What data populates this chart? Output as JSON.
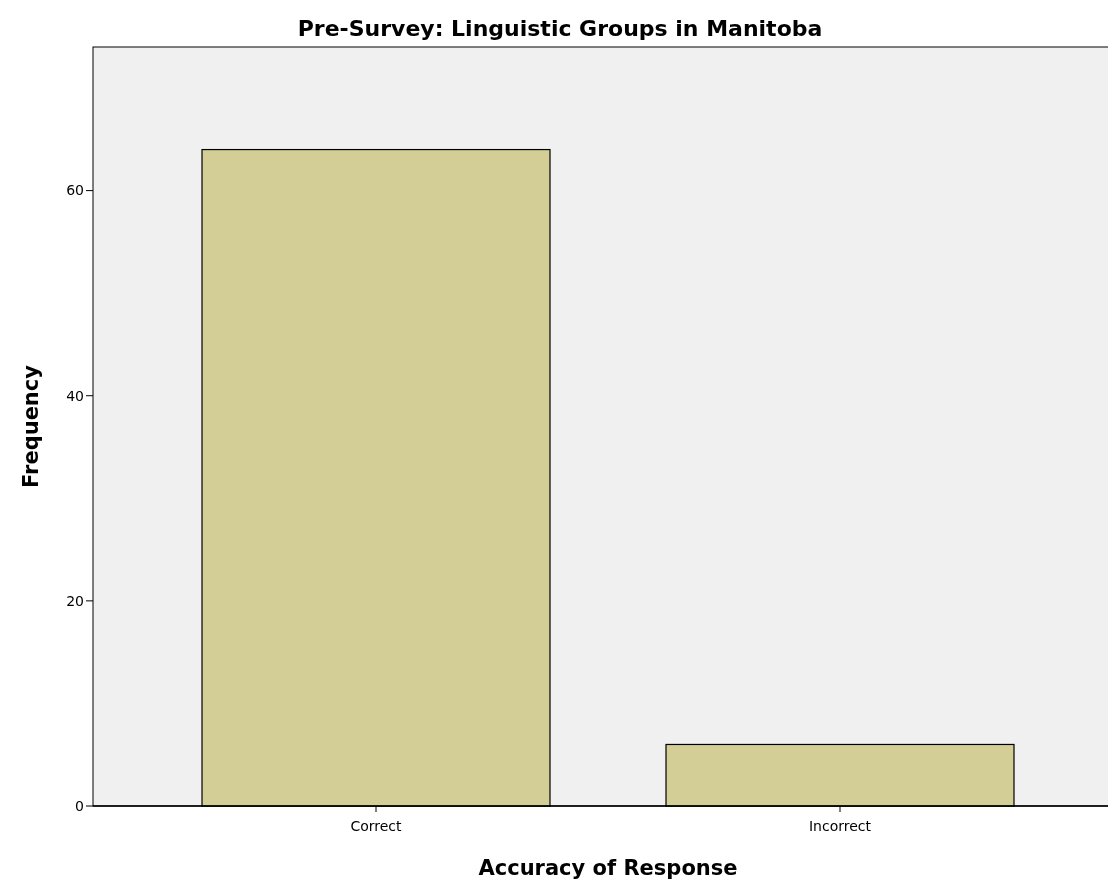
{
  "chart_data": {
    "type": "bar",
    "title": "Pre-Survey: Linguistic Groups in Manitoba",
    "xlabel": "Accuracy of Response",
    "ylabel": "Frequency",
    "categories": [
      "Correct",
      "Incorrect"
    ],
    "values": [
      64,
      6
    ],
    "color": "#d3cd96",
    "ylim": [
      0,
      74
    ],
    "yticks": [
      0,
      20,
      40,
      60
    ],
    "grid": false
  }
}
